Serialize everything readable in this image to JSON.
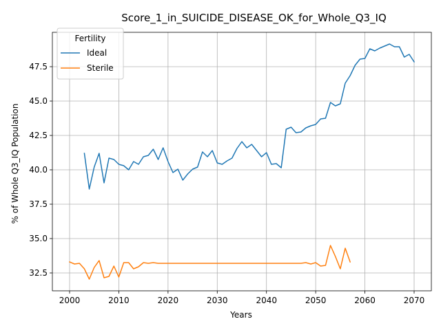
{
  "chart_data": {
    "type": "line",
    "title": "Score_1_in_SUICIDE_DISEASE_OK_for_Whole_Q3_IQ",
    "xlabel": "Years",
    "ylabel": "% of Whole Q3_IQ Population",
    "xlim": [
      1996.5,
      2073.5
    ],
    "ylim": [
      31.2,
      50.0
    ],
    "xticks": [
      2000,
      2010,
      2020,
      2030,
      2040,
      2050,
      2060,
      2070
    ],
    "yticks": [
      32.5,
      35.0,
      37.5,
      40.0,
      42.5,
      45.0,
      47.5
    ],
    "ytick_labels": [
      "32.5",
      "35.0",
      "37.5",
      "40.0",
      "42.5",
      "45.0",
      "47.5"
    ],
    "grid": true,
    "legend": {
      "title": "Fertility",
      "placement": "top-left"
    },
    "series": [
      {
        "name": "Ideal",
        "color": "#1f77b4",
        "x": [
          2003,
          2004,
          2005,
          2006,
          2007,
          2008,
          2009,
          2010,
          2011,
          2012,
          2013,
          2014,
          2015,
          2016,
          2017,
          2018,
          2019,
          2020,
          2021,
          2022,
          2023,
          2024,
          2025,
          2026,
          2027,
          2028,
          2029,
          2030,
          2031,
          2032,
          2033,
          2034,
          2035,
          2036,
          2037,
          2038,
          2039,
          2040,
          2041,
          2042,
          2043,
          2044,
          2045,
          2046,
          2047,
          2048,
          2049,
          2050,
          2051,
          2052,
          2053,
          2054,
          2055,
          2056,
          2057,
          2058,
          2059,
          2060,
          2061,
          2062,
          2063,
          2064,
          2065,
          2066,
          2067,
          2068,
          2069,
          2070
        ],
        "y": [
          41.2,
          38.6,
          40.2,
          41.2,
          39.05,
          40.85,
          40.75,
          40.4,
          40.3,
          40.0,
          40.6,
          40.4,
          40.95,
          41.05,
          41.5,
          40.75,
          41.6,
          40.6,
          39.8,
          40.05,
          39.25,
          39.7,
          40.05,
          40.2,
          41.3,
          40.95,
          41.4,
          40.5,
          40.4,
          40.65,
          40.85,
          41.55,
          42.05,
          41.6,
          41.85,
          41.4,
          40.95,
          41.25,
          40.4,
          40.45,
          40.15,
          42.95,
          43.1,
          42.7,
          42.75,
          43.05,
          43.2,
          43.3,
          43.7,
          43.75,
          44.9,
          44.65,
          44.8,
          46.3,
          46.85,
          47.6,
          48.05,
          48.1,
          48.8,
          48.65,
          48.85,
          49.0,
          49.15,
          48.95,
          48.95,
          48.2,
          48.4,
          47.85
        ]
      },
      {
        "name": "Sterile",
        "color": "#ff7f0e",
        "x": [
          2000,
          2001,
          2002,
          2003,
          2004,
          2005,
          2006,
          2007,
          2008,
          2009,
          2010,
          2011,
          2012,
          2013,
          2014,
          2015,
          2016,
          2017,
          2018,
          2019,
          2020,
          2021,
          2022,
          2023,
          2024,
          2025,
          2026,
          2027,
          2028,
          2029,
          2030,
          2031,
          2032,
          2033,
          2034,
          2035,
          2036,
          2037,
          2038,
          2039,
          2040,
          2041,
          2042,
          2043,
          2044,
          2045,
          2046,
          2047,
          2048,
          2049,
          2050,
          2051,
          2052,
          2053,
          2054,
          2055,
          2056,
          2057
        ],
        "y": [
          33.3,
          33.15,
          33.2,
          32.8,
          32.05,
          32.9,
          33.4,
          32.15,
          32.25,
          33.0,
          32.2,
          33.25,
          33.25,
          32.8,
          32.95,
          33.25,
          33.2,
          33.25,
          33.2,
          33.2,
          33.2,
          33.2,
          33.2,
          33.2,
          33.2,
          33.2,
          33.2,
          33.2,
          33.2,
          33.2,
          33.2,
          33.2,
          33.2,
          33.2,
          33.2,
          33.2,
          33.2,
          33.2,
          33.2,
          33.2,
          33.2,
          33.2,
          33.2,
          33.2,
          33.2,
          33.2,
          33.2,
          33.2,
          33.25,
          33.15,
          33.25,
          33.0,
          33.05,
          34.5,
          33.7,
          32.8,
          34.3,
          33.3
        ]
      }
    ]
  }
}
